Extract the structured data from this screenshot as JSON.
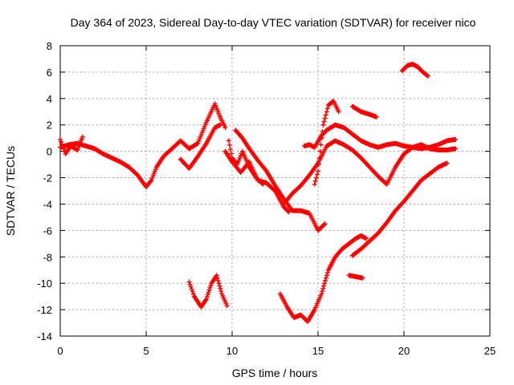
{
  "chart_data": {
    "type": "scatter",
    "title": "Day 364 of 2023, Sidereal Day-to-day VTEC variation (SDTVAR) for receiver nico",
    "xlabel": "GPS time / hours",
    "ylabel": "SDTVAR / TECUs",
    "xlim": [
      0,
      25
    ],
    "ylim": [
      -14,
      8
    ],
    "xticks": [
      0,
      5,
      10,
      15,
      20,
      25
    ],
    "yticks": [
      -14,
      -12,
      -10,
      -8,
      -6,
      -4,
      -2,
      0,
      2,
      4,
      6,
      8
    ],
    "grid": true,
    "legend": "none",
    "marker": "+",
    "color": "#ff0000",
    "series": [
      {
        "name": "arc-1",
        "x": [
          0.0,
          0.5,
          1.0,
          1.5,
          2.0,
          2.5,
          3.0,
          3.5,
          4.0,
          4.5,
          5.0,
          5.3,
          5.6,
          6.0,
          6.5,
          7.0,
          7.5,
          8.0,
          8.5,
          9.0,
          9.3,
          9.6
        ],
        "y": [
          0.3,
          0.5,
          0.6,
          0.4,
          0.2,
          -0.2,
          -0.5,
          -0.8,
          -1.2,
          -1.8,
          -2.7,
          -2.2,
          -1.2,
          -0.4,
          0.2,
          0.8,
          0.2,
          0.6,
          2.2,
          3.6,
          2.6,
          1.8
        ]
      },
      {
        "name": "arc-2",
        "x": [
          0.0,
          0.3,
          0.6,
          1.0,
          1.3
        ],
        "y": [
          0.9,
          -0.2,
          0.4,
          0.1,
          1.1
        ]
      },
      {
        "name": "arc-3",
        "x": [
          7.0,
          7.5,
          8.0,
          8.5,
          9.0,
          9.3
        ],
        "y": [
          -0.6,
          -1.3,
          -0.4,
          0.6,
          1.8,
          2.0
        ]
      },
      {
        "name": "arc-4",
        "x": [
          9.6,
          10.0,
          10.5,
          11.0,
          11.5,
          12.0,
          12.5,
          13.0,
          13.3
        ],
        "y": [
          0.0,
          -0.8,
          -1.6,
          -0.8,
          -2.2,
          -2.4,
          -3.0,
          -4.2,
          -4.6
        ]
      },
      {
        "name": "arc-5",
        "x": [
          9.8,
          10.0,
          10.3,
          10.6,
          11.0,
          11.4,
          11.8
        ],
        "y": [
          0.8,
          -0.5,
          -1.0,
          0.0,
          -1.2,
          -2.0,
          -2.5
        ]
      },
      {
        "name": "arc-6",
        "x": [
          10.2,
          10.6,
          11.0,
          11.5,
          12.0,
          12.5,
          13.0,
          13.5,
          14.0,
          14.5,
          15.0,
          15.4
        ],
        "y": [
          1.6,
          1.0,
          0.2,
          -0.7,
          -1.5,
          -2.6,
          -3.6,
          -4.5,
          -4.5,
          -4.7,
          -6.0,
          -5.5
        ]
      },
      {
        "name": "arc-7",
        "x": [
          13.0,
          13.5,
          14.0,
          14.5,
          15.0,
          15.5,
          16.0,
          16.5,
          17.0,
          17.5,
          18.0,
          18.5,
          19.0,
          19.5,
          20.0,
          20.5,
          21.0,
          21.5,
          22.0,
          22.5,
          23.0
        ],
        "y": [
          -4.0,
          -3.2,
          -2.6,
          -1.8,
          -0.9,
          0.4,
          0.8,
          0.5,
          0.1,
          -0.5,
          -1.2,
          -1.9,
          -2.5,
          -1.2,
          -0.2,
          0.3,
          0.5,
          0.2,
          0.1,
          0.1,
          0.2
        ]
      },
      {
        "name": "arc-8",
        "x": [
          14.2,
          14.5,
          14.8,
          15.2,
          15.5,
          16.0,
          16.5,
          17.0,
          17.5,
          18.0,
          18.5,
          19.0,
          19.5,
          20.0,
          20.5,
          21.0,
          21.5,
          22.0,
          22.5,
          23.0
        ],
        "y": [
          0.4,
          0.5,
          0.3,
          1.2,
          1.6,
          2.0,
          1.8,
          1.3,
          0.8,
          0.5,
          0.3,
          0.5,
          0.6,
          0.4,
          0.3,
          0.2,
          0.3,
          0.5,
          0.8,
          0.9
        ]
      },
      {
        "name": "arc-9",
        "x": [
          14.8,
          15.0,
          15.3,
          15.6,
          15.9,
          16.2
        ],
        "y": [
          -2.5,
          -1.5,
          2.0,
          3.5,
          3.8,
          3.0
        ]
      },
      {
        "name": "arc-10",
        "x": [
          17.0,
          17.5,
          18.0,
          18.4
        ],
        "y": [
          3.4,
          3.0,
          2.8,
          2.6
        ]
      },
      {
        "name": "arc-11",
        "x": [
          19.9,
          20.2,
          20.5,
          20.8,
          21.1,
          21.4
        ],
        "y": [
          6.1,
          6.5,
          6.6,
          6.4,
          6.0,
          5.7
        ]
      },
      {
        "name": "arc-12",
        "x": [
          7.5,
          7.8,
          8.2,
          8.5,
          8.8,
          9.1,
          9.4,
          9.7
        ],
        "y": [
          -9.9,
          -11.0,
          -11.8,
          -11.2,
          -10.0,
          -9.4,
          -10.8,
          -11.7
        ]
      },
      {
        "name": "arc-13",
        "x": [
          12.8,
          13.2,
          13.6,
          14.0,
          14.4,
          14.8,
          15.2,
          15.6,
          16.0,
          16.4,
          16.8,
          17.2,
          17.5,
          17.8
        ],
        "y": [
          -10.8,
          -11.8,
          -12.6,
          -12.4,
          -12.9,
          -12.0,
          -10.8,
          -9.0,
          -8.0,
          -7.4,
          -7.0,
          -6.6,
          -6.4,
          -6.6
        ]
      },
      {
        "name": "arc-14",
        "x": [
          16.8,
          17.2,
          17.6
        ],
        "y": [
          -9.4,
          -9.5,
          -9.6
        ]
      },
      {
        "name": "arc-15",
        "x": [
          17.0,
          17.5,
          18.0,
          18.5,
          19.0,
          19.5,
          20.0,
          20.5,
          21.0,
          21.5,
          22.0,
          22.5
        ],
        "y": [
          -7.9,
          -7.4,
          -6.8,
          -6.2,
          -5.4,
          -4.5,
          -3.8,
          -3.0,
          -2.2,
          -1.7,
          -1.2,
          -0.9
        ]
      }
    ]
  }
}
